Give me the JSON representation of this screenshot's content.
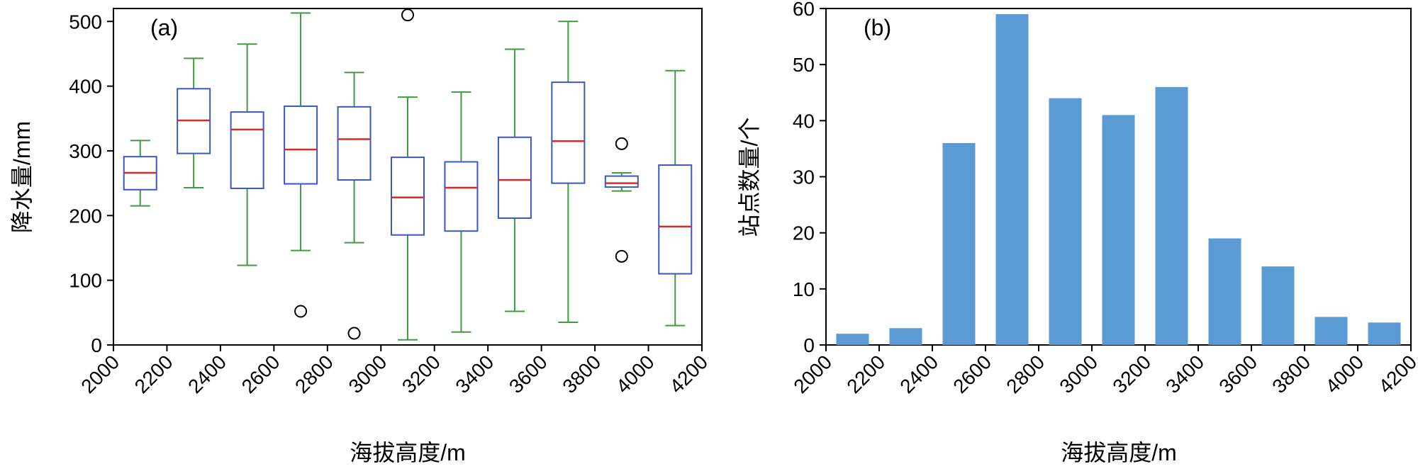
{
  "figure": {
    "background": "#ffffff"
  },
  "chart_data": [
    {
      "type": "boxplot",
      "panel_label": "(a)",
      "xlabel": "海拔高度/m",
      "ylabel": "降水量/mm",
      "xlim": [
        2000,
        4200
      ],
      "ylim": [
        0,
        520
      ],
      "x_ticks": [
        2000,
        2200,
        2400,
        2600,
        2800,
        3000,
        3200,
        3400,
        3600,
        3800,
        4000,
        4200
      ],
      "y_ticks": [
        0,
        100,
        200,
        300,
        400,
        500
      ],
      "grid": false,
      "colors": {
        "box": "#3a57c8",
        "median": "#d62b2b",
        "whisker": "#3f9b40",
        "outlier": "#000000",
        "axis": "#000000"
      },
      "boxes": [
        {
          "bin": "2000-2200",
          "center": 2100,
          "whisker_low": 215,
          "q1": 240,
          "median": 266,
          "q3": 291,
          "whisker_high": 316,
          "outliers": []
        },
        {
          "bin": "2200-2400",
          "center": 2300,
          "whisker_low": 243,
          "q1": 296,
          "median": 347,
          "q3": 396,
          "whisker_high": 443,
          "outliers": []
        },
        {
          "bin": "2400-2600",
          "center": 2500,
          "whisker_low": 123,
          "q1": 242,
          "median": 333,
          "q3": 360,
          "whisker_high": 465,
          "outliers": []
        },
        {
          "bin": "2600-2800",
          "center": 2700,
          "whisker_low": 146,
          "q1": 249,
          "median": 302,
          "q3": 369,
          "whisker_high": 513,
          "outliers": [
            52
          ]
        },
        {
          "bin": "2800-3000",
          "center": 2900,
          "whisker_low": 158,
          "q1": 255,
          "median": 318,
          "q3": 368,
          "whisker_high": 421,
          "outliers": [
            18
          ]
        },
        {
          "bin": "3000-3200",
          "center": 3100,
          "whisker_low": 8,
          "q1": 170,
          "median": 228,
          "q3": 290,
          "whisker_high": 383,
          "outliers": [
            510
          ]
        },
        {
          "bin": "3200-3400",
          "center": 3300,
          "whisker_low": 20,
          "q1": 176,
          "median": 243,
          "q3": 283,
          "whisker_high": 391,
          "outliers": []
        },
        {
          "bin": "3400-3600",
          "center": 3500,
          "whisker_low": 52,
          "q1": 196,
          "median": 255,
          "q3": 321,
          "whisker_high": 457,
          "outliers": []
        },
        {
          "bin": "3600-3800",
          "center": 3700,
          "whisker_low": 35,
          "q1": 250,
          "median": 315,
          "q3": 406,
          "whisker_high": 500,
          "outliers": []
        },
        {
          "bin": "3800-4000",
          "center": 3900,
          "whisker_low": 238,
          "q1": 244,
          "median": 250,
          "q3": 261,
          "whisker_high": 266,
          "outliers": [
            311,
            137
          ]
        },
        {
          "bin": "4000-4200",
          "center": 4100,
          "whisker_low": 30,
          "q1": 110,
          "median": 183,
          "q3": 278,
          "whisker_high": 424,
          "outliers": []
        }
      ]
    },
    {
      "type": "bar",
      "panel_label": "(b)",
      "xlabel": "海拔高度/m",
      "ylabel": "站点数量/个",
      "xlim": [
        2000,
        4200
      ],
      "ylim": [
        0,
        60
      ],
      "x_ticks": [
        2000,
        2200,
        2400,
        2600,
        2800,
        3000,
        3200,
        3400,
        3600,
        3800,
        4000,
        4200
      ],
      "y_ticks": [
        0,
        10,
        20,
        30,
        40,
        50,
        60
      ],
      "grid": false,
      "colors": {
        "bar": "#5b9bd5",
        "axis": "#000000"
      },
      "bins": [
        "2000-2200",
        "2200-2400",
        "2400-2600",
        "2600-2800",
        "2800-3000",
        "3000-3200",
        "3200-3400",
        "3400-3600",
        "3600-3800",
        "3800-4000",
        "4000-4200"
      ],
      "centers": [
        2100,
        2300,
        2500,
        2700,
        2900,
        3100,
        3300,
        3500,
        3700,
        3900,
        4100
      ],
      "values": [
        2,
        3,
        36,
        59,
        44,
        41,
        46,
        19,
        14,
        5,
        4
      ]
    }
  ]
}
